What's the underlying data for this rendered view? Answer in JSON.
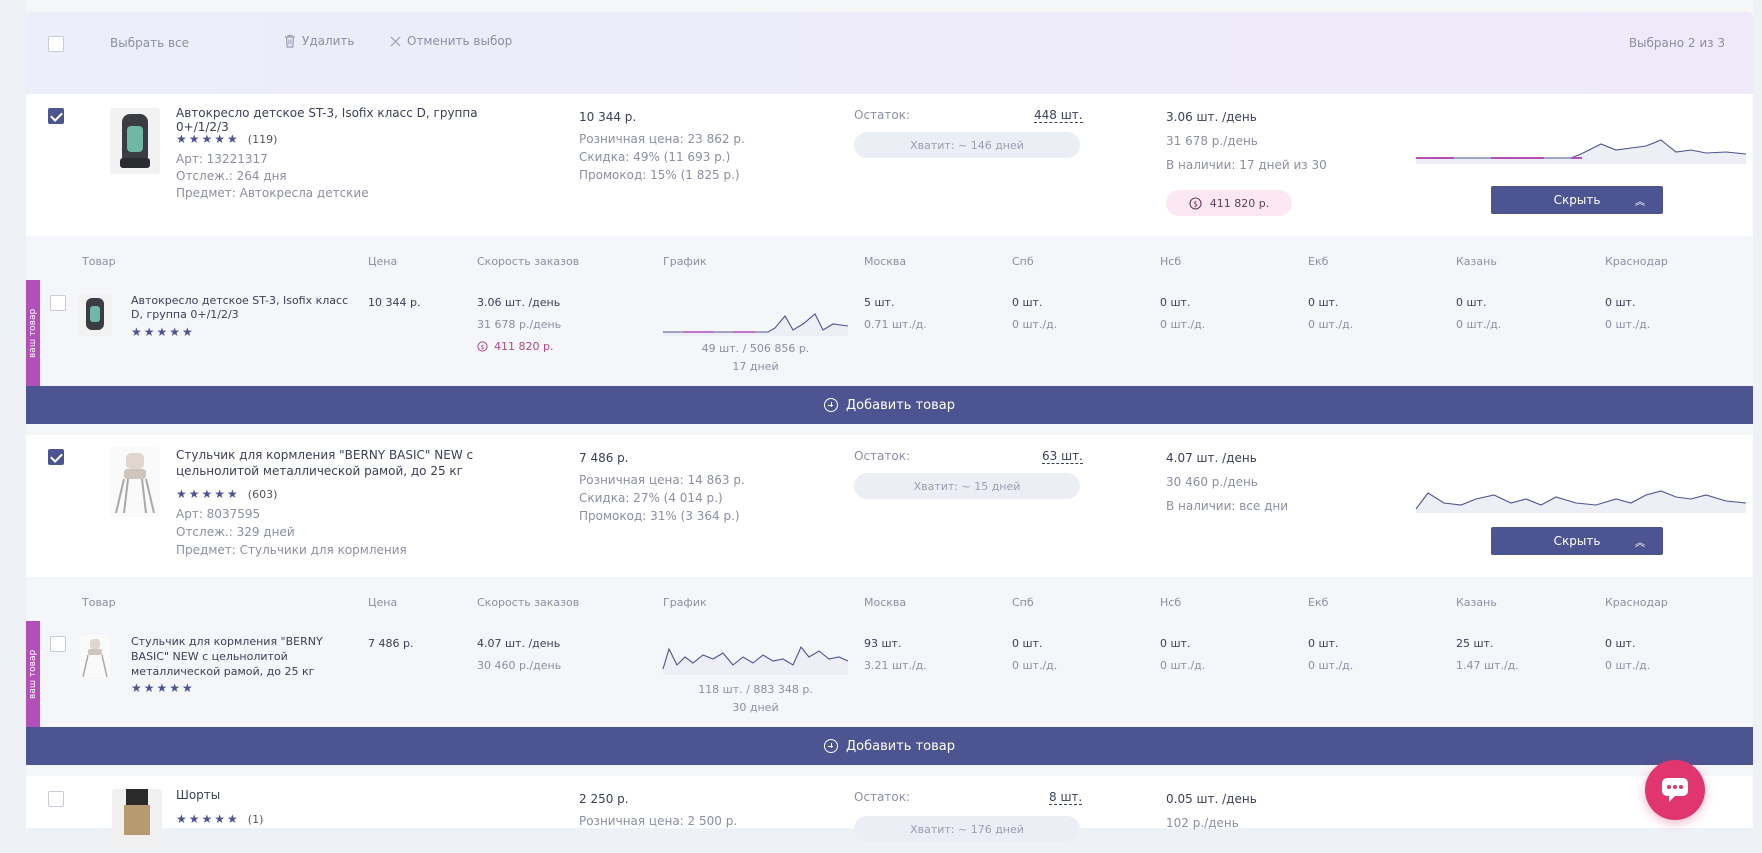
{
  "toolbar": {
    "select_all": "Выбрать все",
    "delete": "Удалить",
    "cancel_selection": "Отменить выбор",
    "selected_count": "Выбрано 2 из 3"
  },
  "sub_headers": {
    "product": "Товар",
    "price": "Цена",
    "order_speed": "Скорость заказов",
    "chart": "График",
    "moscow": "Москва",
    "spb": "Спб",
    "nsb": "Нсб",
    "ekb": "Екб",
    "kazan": "Казань",
    "krasnodar": "Краснодар"
  },
  "your_product_tag": "ваш товар",
  "add_product": "Добавить товар",
  "hide_button": "Скрыть",
  "products": [
    {
      "checked": true,
      "title": "Автокресло детское ST-3, Isofix класс D, группа 0+/1/2/3",
      "stars": "★★★★★",
      "reviews": "(119)",
      "art": "Арт: 13221317",
      "tracked": "Отслеж.: 264 дня",
      "subject": "Предмет: Автокресла детские",
      "price": "10 344 р.",
      "retail_price": "Розничная цена: 23 862 р.",
      "discount": "Скидка: 49% (11 693 р.)",
      "promo": "Промокод: 15% (1 825 р.)",
      "stock_label": "Остаток:",
      "stock_value": "448 шт.",
      "enough": "Хватит: ~ 146 дней",
      "speed": "3.06 шт. /день",
      "revenue_day": "31 678 р./день",
      "availability": "В наличии: 17 дней из 30",
      "revenue_total": "411 820 р.",
      "sub": {
        "title": "Автокресло детское ST-3, Isofix класс D, группа 0+/1/2/3",
        "stars": "★★★★★",
        "price": "10 344 р.",
        "speed": "3.06 шт. /день",
        "revenue_day": "31 678 р./день",
        "revenue_total": "411 820 р.",
        "chart_caption_1": "49 шт. / 506 856 р.",
        "chart_caption_2": "17 дней",
        "moscow": "5 шт.",
        "moscow_d": "0.71 шт./д.",
        "spb": "0 шт.",
        "spb_d": "0 шт./д.",
        "nsb": "0 шт.",
        "nsb_d": "0 шт./д.",
        "ekb": "0 шт.",
        "ekb_d": "0 шт./д.",
        "kazan": "0 шт.",
        "kazan_d": "0 шт./д.",
        "krasnodar": "0 шт.",
        "krasnodar_d": "0 шт./д."
      }
    },
    {
      "checked": true,
      "title": "Стульчик для кормления \"BERNY BASIC\" NEW с цельнолитой металлической рамой, до 25 кг",
      "stars": "★★★★★",
      "reviews": "(603)",
      "art": "Арт: 8037595",
      "tracked": "Отслеж.: 329 дней",
      "subject": "Предмет: Стульчики для кормления",
      "price": "7 486 р.",
      "retail_price": "Розничная цена: 14 863 р.",
      "discount": "Скидка: 27% (4 014 р.)",
      "promo": "Промокод: 31% (3 364 р.)",
      "stock_label": "Остаток:",
      "stock_value": "63 шт.",
      "enough": "Хватит: ~ 15 дней",
      "speed": "4.07 шт. /день",
      "revenue_day": "30 460 р./день",
      "availability": "В наличии: все дни",
      "sub": {
        "title": "Стульчик для кормления \"BERNY BASIC\" NEW с цельнолитой металлической рамой, до 25 кг",
        "stars": "★★★★★",
        "price": "7 486 р.",
        "speed": "4.07 шт. /день",
        "revenue_day": "30 460 р./день",
        "chart_caption_1": "118 шт. / 883 348 р.",
        "chart_caption_2": "30 дней",
        "moscow": "93 шт.",
        "moscow_d": "3.21 шт./д.",
        "spb": "0 шт.",
        "spb_d": "0 шт./д.",
        "nsb": "0 шт.",
        "nsb_d": "0 шт./д.",
        "ekb": "0 шт.",
        "ekb_d": "0 шт./д.",
        "kazan": "25 шт.",
        "kazan_d": "1.47 шт./д.",
        "krasnodar": "0 шт.",
        "krasnodar_d": "0 шт./д."
      }
    },
    {
      "checked": false,
      "title": "Шорты",
      "stars": "★★★★★",
      "reviews": "(1)",
      "price": "2 250 р.",
      "retail_price": "Розничная цена: 2 500 р.",
      "stock_label": "Остаток:",
      "stock_value": "8 шт.",
      "enough": "Хватит: ~ 176 дней",
      "speed": "0.05 шт. /день",
      "revenue_day": "102 р./день"
    }
  ],
  "colors": {
    "accent": "#4d5492",
    "tag": "#b24fb8",
    "fab": "#e0356e"
  }
}
